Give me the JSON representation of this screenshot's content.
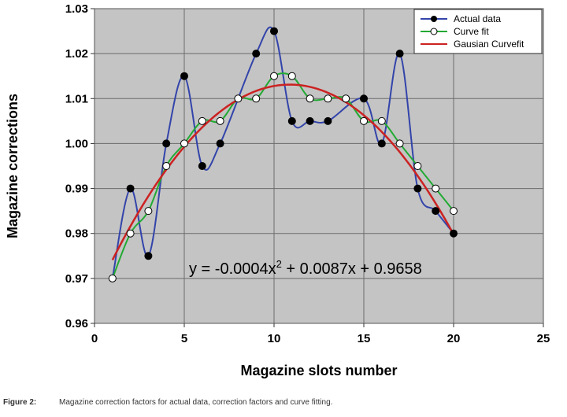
{
  "chart_data": {
    "type": "scatter",
    "xlabel": "Magazine slots number",
    "ylabel": "Magazine corrections",
    "xlim": [
      0,
      25
    ],
    "ylim": [
      0.96,
      1.03
    ],
    "xticks": [
      "0",
      "5",
      "10",
      "15",
      "20",
      "25"
    ],
    "yticks": [
      "0.96",
      "0.97",
      "0.98",
      "0.99",
      "1.00",
      "1.01",
      "1.02",
      "1.03"
    ],
    "grid": true,
    "legend": "top-right",
    "equation": {
      "prefix": "y = -0.0004x",
      "exponent": "2",
      "suffix": " + 0.0087x + 0.9658"
    },
    "series": [
      {
        "name": "Actual data",
        "line_color": "#3344aa",
        "marker": "filled-circle",
        "x": [
          2,
          3,
          4,
          5,
          6,
          7,
          9,
          10,
          11,
          12,
          13,
          15,
          16,
          17,
          18,
          19,
          20
        ],
        "y": [
          0.99,
          0.975,
          1.0,
          1.015,
          0.995,
          1.0,
          1.02,
          1.025,
          1.005,
          1.005,
          1.005,
          1.01,
          1.0,
          1.02,
          0.99,
          0.985,
          0.98
        ]
      },
      {
        "name": "Curve fit",
        "line_color": "#22aa33",
        "marker": "open-circle",
        "x": [
          1,
          2,
          3,
          4,
          5,
          6,
          7,
          8,
          9,
          10,
          11,
          12,
          13,
          14,
          15,
          16,
          17,
          18,
          19,
          20
        ],
        "y": [
          0.97,
          0.98,
          0.985,
          0.995,
          1.0,
          1.005,
          1.005,
          1.01,
          1.01,
          1.015,
          1.015,
          1.01,
          1.01,
          1.01,
          1.005,
          1.005,
          1.0,
          0.995,
          0.99,
          0.985
        ]
      },
      {
        "name": "Gausian Curvefit",
        "line_color": "#cc2222",
        "marker": "none",
        "x": [
          1,
          20
        ],
        "y": [
          0.9721,
          0.9808
        ]
      }
    ]
  },
  "caption": {
    "label": "Figure 2:",
    "text": "Magazine correction factors for actual data, correction factors and curve fitting."
  }
}
